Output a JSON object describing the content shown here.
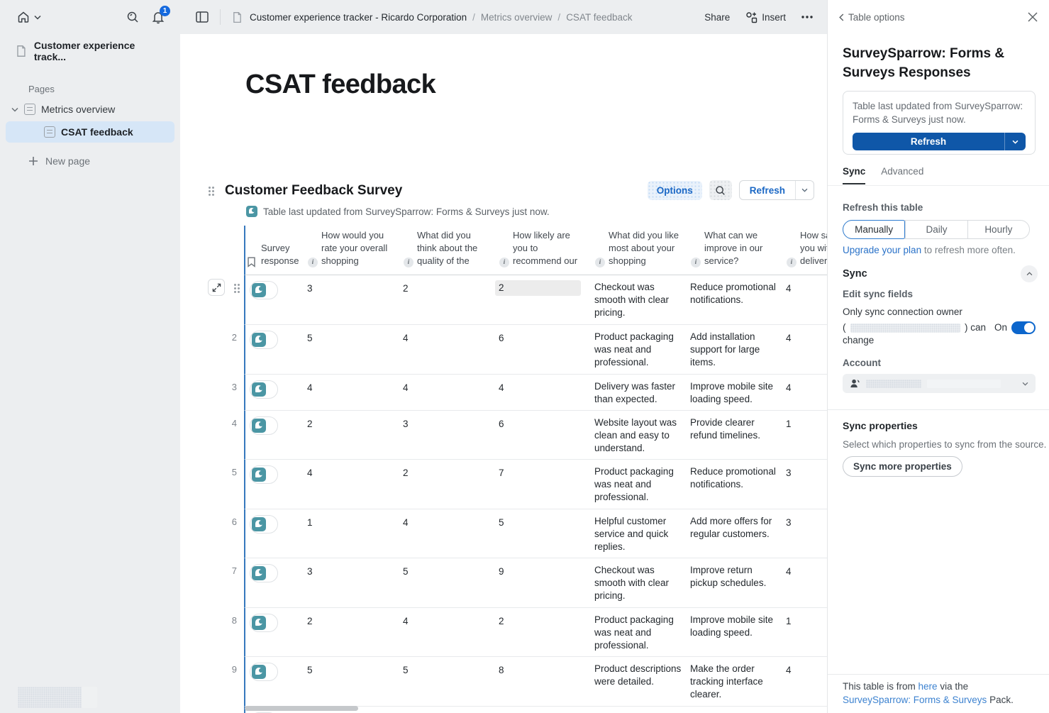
{
  "sidebar": {
    "doc_title": "Customer experience track...",
    "pages_label": "Pages",
    "parent_page": "Metrics overview",
    "active_page": "CSAT feedback",
    "new_page_label": "New page",
    "notification_count": "1"
  },
  "topbar": {
    "breadcrumb": [
      "Customer experience tracker - Ricardo Corporation",
      "Metrics overview",
      "CSAT feedback"
    ],
    "share_label": "Share",
    "insert_label": "Insert"
  },
  "page": {
    "title": "CSAT feedback"
  },
  "table_section": {
    "title": "Customer Feedback Survey",
    "options_label": "Options",
    "refresh_label": "Refresh",
    "last_updated": "Table last updated from SurveySparrow: Forms & Surveys just now."
  },
  "table": {
    "columns": [
      {
        "icon": "bookmark",
        "lines": [
          "Survey",
          "response"
        ]
      },
      {
        "icon": "info",
        "lines": [
          "How would you",
          "rate your overall",
          "shopping"
        ]
      },
      {
        "icon": "info",
        "lines": [
          "What did you",
          "think about the",
          "quality of the"
        ]
      },
      {
        "icon": "info",
        "lines": [
          "How likely are",
          "you to",
          "recommend our"
        ]
      },
      {
        "icon": "info",
        "lines": [
          "What did you like",
          "most about your",
          "shopping"
        ]
      },
      {
        "icon": "info",
        "lines": [
          "What can we",
          "improve in our",
          "service?"
        ]
      },
      {
        "icon": "info",
        "lines": [
          "How sa",
          "you wit",
          "deliver"
        ]
      }
    ],
    "rows": [
      {
        "num": "",
        "values": [
          "3",
          "2",
          "2",
          "Checkout was smooth with clear pricing.",
          "Reduce promotional notifications.",
          "4"
        ]
      },
      {
        "num": "2",
        "values": [
          "5",
          "4",
          "6",
          "Product packaging was neat and professional.",
          "Add installation support for large items.",
          "4"
        ]
      },
      {
        "num": "3",
        "values": [
          "4",
          "4",
          "4",
          "Delivery was faster than expected.",
          "Improve mobile site loading speed.",
          "4"
        ]
      },
      {
        "num": "4",
        "values": [
          "2",
          "3",
          "6",
          "Website layout was clean and easy to understand.",
          "Provide clearer refund timelines.",
          "1"
        ]
      },
      {
        "num": "5",
        "values": [
          "4",
          "2",
          "7",
          "Product packaging was neat and professional.",
          "Reduce promotional notifications.",
          "3"
        ]
      },
      {
        "num": "6",
        "values": [
          "1",
          "4",
          "5",
          "Helpful customer service and quick replies.",
          "Add more offers for regular customers.",
          "3"
        ]
      },
      {
        "num": "7",
        "values": [
          "3",
          "5",
          "9",
          "Checkout was smooth with clear pricing.",
          "Improve return pickup schedules.",
          "4"
        ]
      },
      {
        "num": "8",
        "values": [
          "2",
          "4",
          "2",
          "Product packaging was neat and professional.",
          "Improve mobile site loading speed.",
          "1"
        ]
      },
      {
        "num": "9",
        "values": [
          "5",
          "5",
          "8",
          "Product descriptions were detailed.",
          "Make the order tracking interface clearer.",
          "4"
        ]
      }
    ],
    "selected_cell": {
      "row": 0,
      "col": 2
    },
    "has_partial_next_row": true
  },
  "panel": {
    "header": "Table options",
    "title": "SurveySparrow: Forms & Surveys Responses",
    "card_text": "Table last updated from SurveySparrow: Forms & Surveys just now.",
    "refresh_label": "Refresh",
    "tabs": [
      "Sync",
      "Advanced"
    ],
    "active_tab": 0,
    "refresh_this_table": "Refresh this table",
    "segments": [
      "Manually",
      "Daily",
      "Hourly"
    ],
    "selected_segment": 0,
    "upgrade_link": "Upgrade your plan",
    "upgrade_rest": " to refresh more often.",
    "sync_heading": "Sync",
    "edit_sync_fields": "Edit sync fields",
    "owner_line1": "Only sync connection owner",
    "owner_paren_open": "(",
    "owner_paren_close": ") can",
    "owner_line3": "change",
    "on_label": "On",
    "account_label": "Account",
    "sync_properties_heading": "Sync properties",
    "sync_properties_desc": "Select which properties to sync from the source.",
    "sync_more_label": "Sync more properties",
    "footer_prefix": "This table is from ",
    "footer_link1": "here",
    "footer_mid": " via the ",
    "footer_link2": "SurveySparrow: Forms & Surveys",
    "footer_suffix": " Pack."
  },
  "colors": {
    "accent_blue": "#0f57a8",
    "link_blue": "#2a72c8",
    "teal": "#4b96a4",
    "badge_blue": "#1569de"
  }
}
